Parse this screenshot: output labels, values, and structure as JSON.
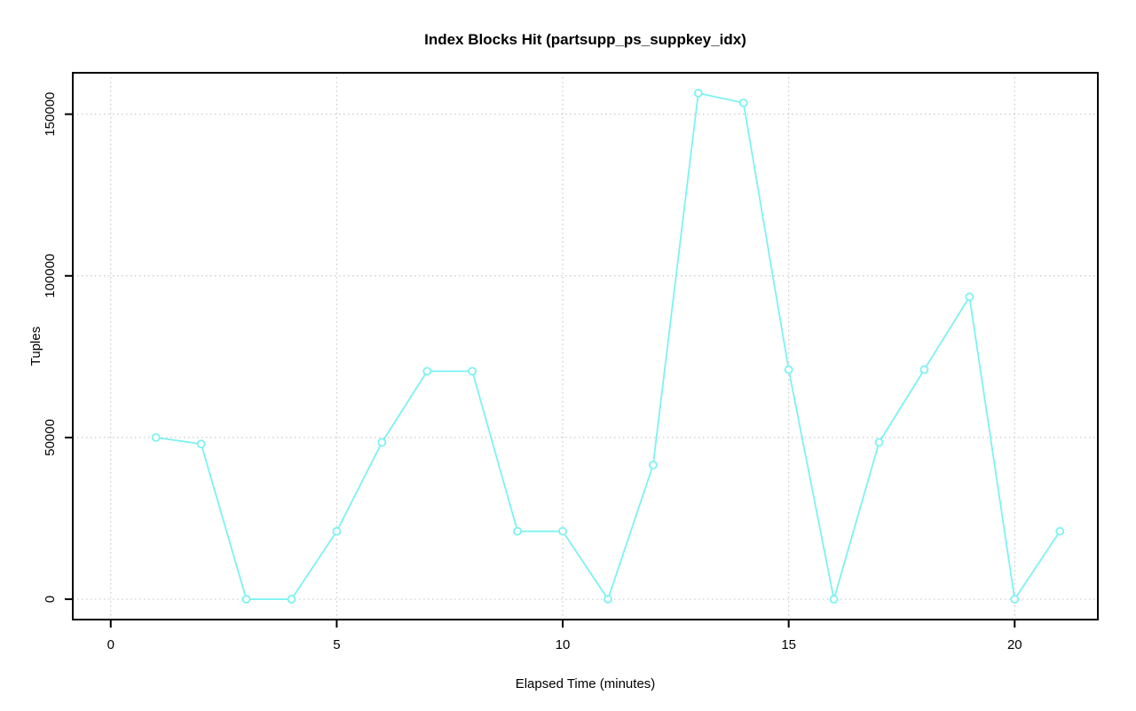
{
  "page": {
    "background_color": "#ffffff"
  },
  "chart_data": {
    "type": "line",
    "title": "Index Blocks Hit (partsupp_ps_suppkey_idx)",
    "xlabel": "Elapsed Time (minutes)",
    "ylabel": "Tuples",
    "x": [
      1,
      2,
      3,
      4,
      5,
      6,
      7,
      8,
      9,
      10,
      11,
      12,
      13,
      14,
      15,
      16,
      17,
      18,
      19,
      20,
      21
    ],
    "series": [
      {
        "name": "index-blocks-hit",
        "values": [
          50000,
          48000,
          0,
          0,
          21000,
          48500,
          70500,
          70500,
          21000,
          21000,
          0,
          41500,
          156500,
          153500,
          71000,
          0,
          48500,
          71000,
          93500,
          0,
          21000
        ],
        "color": "#7df2f2",
        "marker": "open-circle",
        "line_style": "solid"
      }
    ],
    "x_ticks": [
      0,
      5,
      10,
      15,
      20
    ],
    "y_ticks": [
      0,
      50000,
      100000,
      150000
    ],
    "xlim": [
      -0.84,
      21.84
    ],
    "ylim": [
      -6300,
      162800
    ],
    "grid": "dotted",
    "grid_color": "#c9c9c9",
    "axis_color": "#000000",
    "text_color": "#000000",
    "legend_position": "none"
  }
}
